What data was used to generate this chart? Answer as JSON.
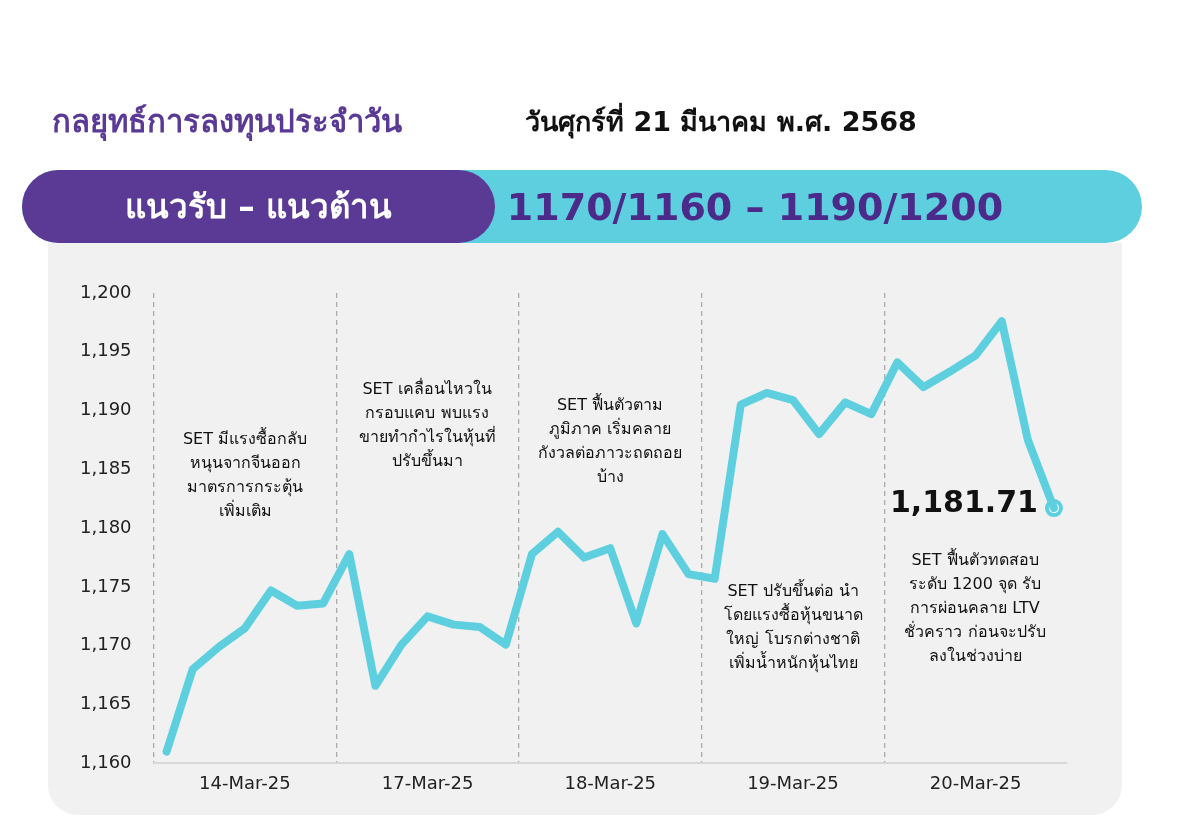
{
  "chart_data": {
    "type": "line",
    "title": "กลยุทธ์การลงทุนประจำวัน",
    "subtitle": "วันศุกร์ที่ 21 มีนาคม พ.ศ. 2568",
    "annotations": [
      "แนวรับ – แนวต้าน",
      "1170/1160 – 1190/1200",
      "SET มีแรงซื้อกลับ\nหนุนจากจีนออก\nมาตรการกระตุ้น\nเพิ่มเติม",
      "SET เคลื่อนไหวใน\nกรอบแคบ พบแรง\nขายทำกำไรในหุ้นที่\nปรับขึ้นมา",
      "SET ฟื้นตัวตาม\nภูมิภาค เริ่มคลาย\nกังวลต่อภาวะถดถอย\nบ้าง",
      "SET ปรับขึ้นต่อ นำ\nโดยแรงซื้อหุ้นขนาด\nใหญ่ โบรกต่างชาติ\nเพิ่มน้ำหนักหุ้นไทย",
      "SET ฟื้นตัวทดสอบ\nระดับ 1200 จุด รับ\nการผ่อนคลาย LTV\nชั่วคราว ก่อนจะปรับ\nลงในช่วงบ่าย"
    ],
    "categories": [
      null,
      null,
      null,
      "14-Mar-25",
      null,
      null,
      null,
      null,
      null,
      null,
      "17-Mar-25",
      null,
      null,
      null,
      null,
      null,
      null,
      "18-Mar-25",
      null,
      null,
      null,
      null,
      null,
      null,
      "19-Mar-25",
      null,
      null,
      null,
      null,
      null,
      null,
      "20-Mar-25",
      null,
      null,
      null
    ],
    "ylim": [
      1160,
      1200
    ],
    "yticks": [
      {
        "value": 1160,
        "label": "1,160"
      },
      {
        "value": 1165,
        "label": "1,165"
      },
      {
        "value": 1170,
        "label": "1,170"
      },
      {
        "value": 1175,
        "label": "1,175"
      },
      {
        "value": 1180,
        "label": "1,180"
      },
      {
        "value": 1185,
        "label": "1,185"
      },
      {
        "value": 1190,
        "label": "1,190"
      },
      {
        "value": 1195,
        "label": "1,195"
      },
      {
        "value": 1200,
        "label": "1,200"
      }
    ],
    "grid": "x",
    "legend": false,
    "series": [
      {
        "type": "line",
        "color": "#5ecfdf",
        "marker": "none",
        "line_style": "solid",
        "values": [
          1161.0,
          1168.0,
          1169.9,
          1171.5,
          1174.7,
          1173.4,
          1173.6,
          1177.8,
          1166.6,
          1170.1,
          1172.5,
          1171.8,
          1171.6,
          1170.1,
          1177.8,
          1179.7,
          1177.5,
          1178.3,
          1171.9,
          1179.5,
          1176.1,
          1175.7,
          1190.5,
          1191.5,
          1190.9,
          1188.0,
          1190.7,
          1189.7,
          1194.1,
          1192.0,
          1193.3,
          1194.7,
          1197.6,
          1187.5,
          1181.71
        ]
      },
      {
        "type": "scatter",
        "color": "#5ecfdf",
        "marker": "circle",
        "values": [
          null,
          null,
          null,
          null,
          null,
          null,
          null,
          null,
          null,
          null,
          null,
          null,
          null,
          null,
          null,
          null,
          null,
          null,
          null,
          null,
          null,
          null,
          null,
          null,
          null,
          null,
          null,
          null,
          null,
          null,
          null,
          null,
          null,
          null,
          1181.71
        ],
        "value_labels": [
          null,
          null,
          null,
          null,
          null,
          null,
          null,
          null,
          null,
          null,
          null,
          null,
          null,
          null,
          null,
          null,
          null,
          null,
          null,
          null,
          null,
          null,
          null,
          null,
          null,
          null,
          null,
          null,
          null,
          null,
          null,
          null,
          null,
          null,
          "1,181.71"
        ]
      }
    ]
  }
}
